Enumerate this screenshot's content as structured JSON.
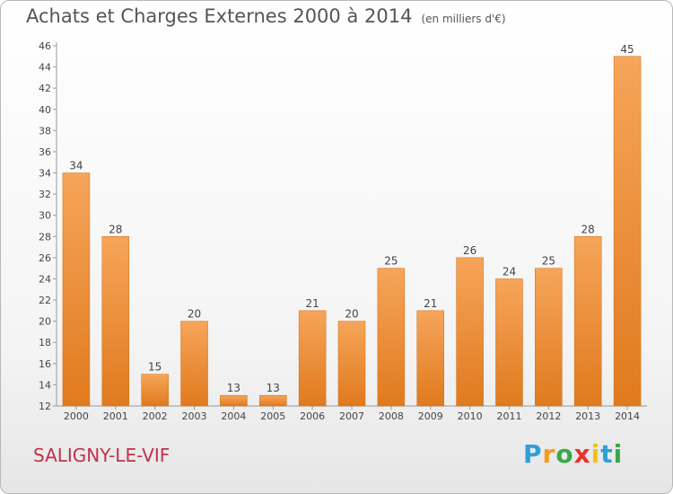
{
  "chart_data": {
    "type": "bar",
    "title": "Achats et Charges Externes 2000 à 2014",
    "unit": "(en milliers d'€)",
    "categories": [
      "2000",
      "2001",
      "2002",
      "2003",
      "2004",
      "2005",
      "2006",
      "2007",
      "2008",
      "2009",
      "2010",
      "2011",
      "2012",
      "2013",
      "2014"
    ],
    "values": [
      34,
      28,
      15,
      20,
      13,
      13,
      21,
      20,
      25,
      21,
      26,
      24,
      25,
      28,
      45
    ],
    "ylim": [
      12,
      46
    ],
    "yticks": [
      12,
      14,
      16,
      18,
      20,
      22,
      24,
      26,
      28,
      30,
      32,
      34,
      36,
      38,
      40,
      42,
      44,
      46
    ],
    "grid": false,
    "colors": {
      "bar_light": "#f6a55a",
      "bar_dark": "#e07a1e"
    }
  },
  "location": "SALIGNY-LE-VIF",
  "logo": {
    "letters": [
      "P",
      "r",
      "o",
      "x",
      "i",
      "t",
      "i"
    ],
    "colors": [
      "#2e9fd8",
      "#f39c1e",
      "#3aa845",
      "#e8322c",
      "#f3c11e",
      "#2e9fd8",
      "#3aa845"
    ]
  }
}
